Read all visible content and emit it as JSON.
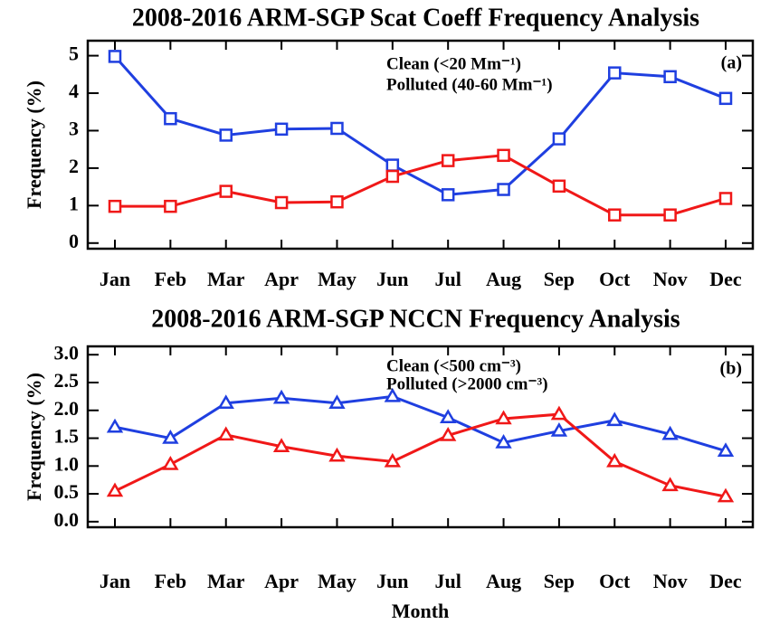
{
  "chart_data": [
    {
      "type": "line",
      "title": "2008-2016 ARM-SGP Scat Coeff Frequency Analysis",
      "ylabel": "Frequency (%)",
      "annotation": "(a)",
      "marker": "square",
      "categories": [
        "Jan",
        "Feb",
        "Mar",
        "Apr",
        "May",
        "Jun",
        "Jul",
        "Aug",
        "Sep",
        "Oct",
        "Nov",
        "Dec"
      ],
      "series": [
        {
          "name": "Clean (<20 Mm⁻¹)",
          "color": "#1f3fe0",
          "values": [
            4.98,
            3.32,
            2.88,
            3.04,
            3.06,
            2.08,
            1.29,
            1.43,
            2.78,
            4.54,
            4.44,
            3.86
          ]
        },
        {
          "name": "Polluted (40-60 Mm⁻¹)",
          "color": "#f01818",
          "values": [
            0.98,
            0.98,
            1.38,
            1.08,
            1.1,
            1.78,
            2.2,
            2.34,
            1.52,
            0.75,
            0.75,
            1.19
          ]
        }
      ],
      "ylim": [
        -0.15,
        5.4
      ],
      "yticks": [
        0,
        1,
        2,
        3,
        4,
        5
      ]
    },
    {
      "type": "line",
      "title": "2008-2016 ARM-SGP NCCN Frequency Analysis",
      "ylabel": "Frequency (%)",
      "xlabel": "Month",
      "annotation": "(b)",
      "marker": "triangle",
      "categories": [
        "Jan",
        "Feb",
        "Mar",
        "Apr",
        "May",
        "Jun",
        "Jul",
        "Aug",
        "Sep",
        "Oct",
        "Nov",
        "Dec"
      ],
      "series": [
        {
          "name": "Clean (<500 cm⁻³)",
          "color": "#1f3fe0",
          "values": [
            1.7,
            1.5,
            2.13,
            2.22,
            2.13,
            2.25,
            1.87,
            1.42,
            1.63,
            1.82,
            1.57,
            1.27
          ]
        },
        {
          "name": "Polluted (>2000 cm⁻³)",
          "color": "#f01818",
          "values": [
            0.55,
            1.03,
            1.56,
            1.35,
            1.18,
            1.08,
            1.55,
            1.85,
            1.93,
            1.08,
            0.65,
            0.45
          ]
        }
      ],
      "ylim": [
        -0.1,
        3.15
      ],
      "yticks": [
        {
          "value": 0,
          "label": "0.0"
        },
        0.5,
        {
          "value": 1,
          "label": "1.0"
        },
        1.5,
        {
          "value": 2,
          "label": "2.0"
        },
        2.5,
        {
          "value": 3,
          "label": "3.0"
        }
      ]
    }
  ]
}
